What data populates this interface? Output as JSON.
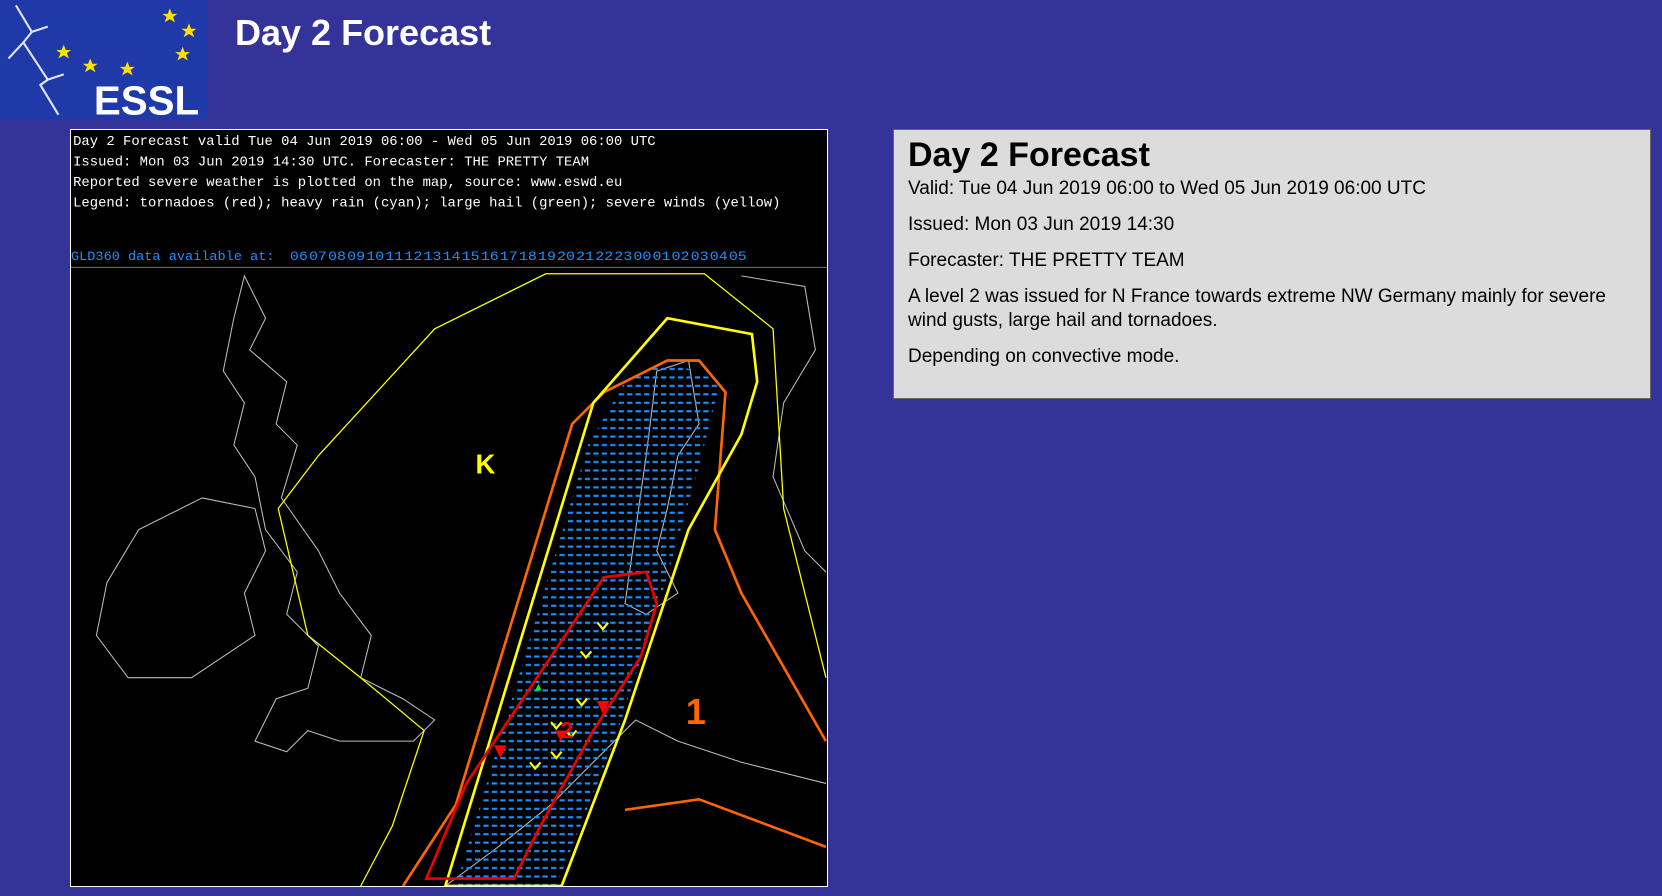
{
  "header": {
    "title": "Day 2 Forecast",
    "logo_text": "ESSL"
  },
  "map": {
    "header_lines": [
      "Day 2 Forecast valid Tue 04 Jun 2019 06:00 - Wed 05 Jun 2019 06:00 UTC",
      "Issued: Mon 03 Jun 2019 14:30 UTC. Forecaster: THE PRETTY TEAM",
      "Reported severe weather is plotted on the map, source: www.eswd.eu",
      "Legend: tornadoes (red); heavy rain (cyan); large hail (green); severe winds (yellow)"
    ],
    "gld360_label": "GLD360 data available at:",
    "gld360_hours": [
      "06",
      "07",
      "08",
      "09",
      "10",
      "11",
      "12",
      "13",
      "14",
      "15",
      "16",
      "17",
      "18",
      "19",
      "20",
      "21",
      "22",
      "23",
      "00",
      "01",
      "02",
      "03",
      "04",
      "05"
    ],
    "level_labels": [
      "1",
      "2"
    ],
    "symbol": "K"
  },
  "panel": {
    "title": "Day 2 Forecast",
    "valid": "Valid: Tue 04 Jun 2019 06:00 to Wed 05 Jun 2019 06:00 UTC",
    "issued": "Issued: Mon 03 Jun 2019 14:30",
    "forecaster": "Forecaster: THE PRETTY TEAM",
    "paragraphs": [
      "A level 2 was issued for N France towards extreme NW Germany mainly for severe wind gusts, large hail and tornadoes.",
      "Depending on convective mode."
    ]
  }
}
